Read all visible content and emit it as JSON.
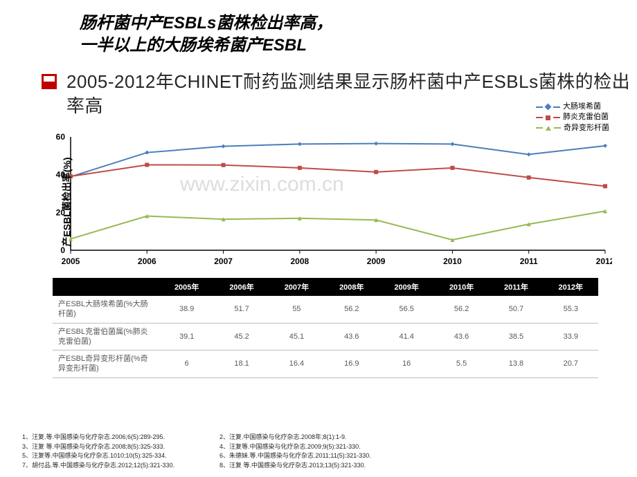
{
  "title": {
    "line1": "肠杆菌中产ESBLs菌株检出率高，",
    "line2": "一半以上的大肠埃希菌产ESBL"
  },
  "subtitle": "2005-2012年CHINET耐药监测结果显示肠杆菌中产ESBLs菌株的检出率高",
  "chart": {
    "type": "line",
    "ylabel": "产ESBL菌检出率(%)",
    "categories": [
      "2005",
      "2006",
      "2007",
      "2008",
      "2009",
      "2010",
      "2011",
      "2012"
    ],
    "ylim": [
      0,
      60
    ],
    "ytick_step": 20,
    "series": [
      {
        "name": "大肠埃希菌",
        "color": "#4A7EBB",
        "marker": "diamond",
        "values": [
          38.9,
          51.7,
          55,
          56.2,
          56.5,
          56.2,
          50.7,
          55.3
        ]
      },
      {
        "name": "肺炎克雷伯菌",
        "color": "#BE4B48",
        "marker": "square",
        "values": [
          39.1,
          45.2,
          45.1,
          43.6,
          41.4,
          43.6,
          38.5,
          33.9
        ]
      },
      {
        "name": "奇异变形杆菌",
        "color": "#98B954",
        "marker": "triangle",
        "values": [
          6,
          18.1,
          16.4,
          16.9,
          16,
          5.5,
          13.8,
          20.7
        ]
      }
    ],
    "axis_color": "#000000",
    "grid_color": "#bfbfbf",
    "background": "#ffffff",
    "line_width": 2,
    "marker_size": 6,
    "label_fontsize": 14,
    "tick_fontsize": 12
  },
  "table": {
    "header_years": [
      "2005年",
      "2006年",
      "2007年",
      "2008年",
      "2009年",
      "2010年",
      "2011年",
      "2012年"
    ],
    "rows": [
      {
        "label": "产ESBL大肠埃希菌(%大肠杆菌)",
        "cells": [
          "38.9",
          "51.7",
          "55",
          "56.2",
          "56.5",
          "56.2",
          "50.7",
          "55.3"
        ]
      },
      {
        "label": "产ESBL克雷伯菌属(%肺炎克雷伯菌)",
        "cells": [
          "39.1",
          "45.2",
          "45.1",
          "43.6",
          "41.4",
          "43.6",
          "38.5",
          "33.9"
        ]
      },
      {
        "label": "产ESBL奇异变形杆菌(%奇异变形杆菌)",
        "cells": [
          "6",
          "18.1",
          "16.4",
          "16.9",
          "16",
          "5.5",
          "13.8",
          "20.7"
        ]
      }
    ]
  },
  "refs": [
    "1、汪复.等.中国感染与化疗杂志.2006;6(5):289-295.",
    "2、汪复.中国感染与化疗杂志.2008年;8(1):1-9.",
    "3、汪复 等.中国感染与化疗杂志.2008;8(5):325-333.",
    "4、汪复等.中国感染与化疗杂志.2009;9(5):321-330.",
    "5、汪复等.中国感染与化疗杂志.1010;10(5):325-334.",
    "6、朱德妹.等.中国感染与化疗杂志.2011;11(5):321-330.",
    "7、胡付品.等.中国感染与化疗杂志.2012;12(5):321-330.",
    "8、汪复 等.中国感染与化疗杂志.2013;13(5):321-330."
  ],
  "watermark": "www.zixin.com.cn"
}
